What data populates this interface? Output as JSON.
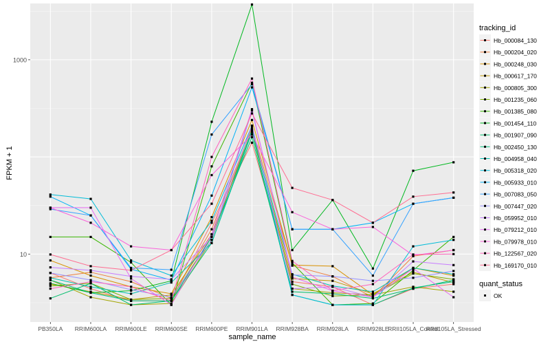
{
  "chart_data": {
    "type": "line",
    "xlabel": "sample_name",
    "ylabel": "FPKM + 1",
    "y_scale": "log10",
    "ylim": [
      2,
      3800
    ],
    "y_ticks": [
      10,
      1000
    ],
    "categories": [
      "PB350LA",
      "RRIM600LA",
      "RRIM600LE",
      "RRIM600SE",
      "RRIM600PE",
      "RRIM901LA",
      "RRIM928BA",
      "RRIM928LA",
      "RRIM928LE",
      "RRII105LA_Control",
      "RRII105LA_Stressed"
    ],
    "legend_position": "right",
    "legend_title": "tracking_id",
    "series": [
      {
        "name": "Hb_000084_130",
        "color": "#F8766D",
        "values": [
          6.4,
          4.4,
          3.3,
          3.3,
          21,
          140,
          5.2,
          4.6,
          3.0,
          4.4,
          4.9
        ]
      },
      {
        "name": "Hb_000204_020",
        "color": "#EE7F3C",
        "values": [
          5.7,
          6.5,
          5.2,
          3.5,
          18,
          200,
          7.6,
          5.9,
          3.6,
          9.5,
          11
        ]
      },
      {
        "name": "Hb_000248_030",
        "color": "#D89000",
        "values": [
          8.6,
          6.0,
          4.6,
          3.9,
          24,
          240,
          7.7,
          7.5,
          3.8,
          7.2,
          6.0
        ]
      },
      {
        "name": "Hb_000617_170",
        "color": "#BF9700",
        "values": [
          4.9,
          4.1,
          3.4,
          3.8,
          16,
          180,
          5.6,
          5.3,
          3.9,
          6.5,
          5.1
        ]
      },
      {
        "name": "Hb_000805_300",
        "color": "#A3A500",
        "values": [
          5.4,
          3.6,
          3.0,
          3.1,
          14,
          210,
          4.4,
          4.0,
          3.8,
          4.6,
          4.1
        ]
      },
      {
        "name": "Hb_001235_060",
        "color": "#7CAE00",
        "values": [
          4.7,
          5.0,
          3.4,
          3.5,
          15,
          190,
          4.9,
          3.7,
          3.8,
          6.3,
          5.5
        ]
      },
      {
        "name": "Hb_001385_080",
        "color": "#39B600",
        "values": [
          15,
          15,
          8.2,
          3.0,
          80,
          580,
          8.1,
          3.0,
          3.1,
          6.8,
          15
        ]
      },
      {
        "name": "Hb_001454_110",
        "color": "#00B81F",
        "values": [
          5.0,
          4.0,
          4.2,
          5.3,
          230,
          3700,
          11,
          36,
          7.1,
          72,
          88
        ]
      },
      {
        "name": "Hb_001907_090",
        "color": "#00BE6C",
        "values": [
          3.5,
          5.0,
          3.0,
          3.3,
          15,
          160,
          4.1,
          3.9,
          3.5,
          4.4,
          5.4
        ]
      },
      {
        "name": "Hb_002450_130",
        "color": "#00BF7D",
        "values": [
          5.4,
          4.0,
          3.3,
          3.3,
          13,
          180,
          3.8,
          3.0,
          3.0,
          4.5,
          5.2
        ]
      },
      {
        "name": "Hb_004958_040",
        "color": "#00C0AF",
        "values": [
          5.7,
          4.6,
          3.9,
          5.1,
          13,
          190,
          6.2,
          4.7,
          4.1,
          7.2,
          6.2
        ]
      },
      {
        "name": "Hb_005318_020",
        "color": "#00BCD8",
        "values": [
          41,
          37,
          8.6,
          6.0,
          22,
          210,
          3.8,
          3.0,
          3.0,
          12,
          14
        ]
      },
      {
        "name": "Hb_005933_010",
        "color": "#00B0F6",
        "values": [
          39,
          25,
          7.0,
          5.4,
          40,
          520,
          18,
          18,
          21,
          33,
          38
        ]
      },
      {
        "name": "Hb_007083_050",
        "color": "#35A2FF",
        "values": [
          29,
          25,
          7.2,
          6.9,
          170,
          560,
          18,
          18,
          6.0,
          33,
          38
        ]
      },
      {
        "name": "Hb_007447_020",
        "color": "#9590FF",
        "values": [
          6.4,
          5.4,
          4.3,
          3.6,
          14,
          300,
          6.1,
          5.9,
          5.3,
          5.7,
          6.7
        ]
      },
      {
        "name": "Hb_059952_010",
        "color": "#C77CFF",
        "values": [
          7.3,
          6.8,
          5.9,
          5.5,
          15,
          210,
          4.4,
          4.6,
          3.6,
          8.4,
          7.7
        ]
      },
      {
        "name": "Hb_079212_010",
        "color": "#E76BF3",
        "values": [
          30,
          30,
          5.6,
          3.0,
          16,
          310,
          5.8,
          4.2,
          3.6,
          7.1,
          3.6
        ]
      },
      {
        "name": "Hb_079978_010",
        "color": "#FA62DB",
        "values": [
          30,
          21,
          12,
          11,
          65,
          170,
          27,
          18,
          19,
          9.7,
          11
        ]
      },
      {
        "name": "Hb_122567_020",
        "color": "#FF62BC",
        "values": [
          4.4,
          5.2,
          4.6,
          3.3,
          100,
          640,
          8.5,
          4.2,
          4.9,
          9.9,
          10
        ]
      },
      {
        "name": "Hb_169170_010",
        "color": "#FF6C91",
        "values": [
          9.9,
          7.5,
          6.8,
          11,
          33,
          280,
          48,
          36,
          21,
          39,
          43
        ]
      }
    ],
    "shape_legend": {
      "title": "quant_status",
      "items": [
        "OK"
      ]
    }
  }
}
